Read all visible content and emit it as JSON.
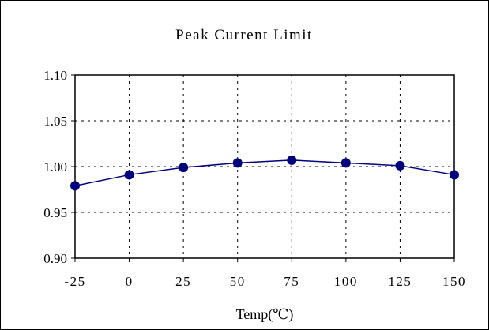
{
  "chart_data": {
    "type": "line",
    "title": "Peak Current Limit",
    "xlabel": "Temp(℃)",
    "ylabel": "",
    "x": [
      -25,
      0,
      25,
      50,
      75,
      100,
      125,
      150
    ],
    "x_tick_labels": [
      "-25",
      "0",
      "25",
      "50",
      "75",
      "100",
      "125",
      "150"
    ],
    "xlim": [
      -25,
      150
    ],
    "y_tick_labels": [
      "1.10",
      "1.05",
      "1.00",
      "0.95",
      "0.90"
    ],
    "y_ticks": [
      1.1,
      1.05,
      1.0,
      0.95,
      0.9
    ],
    "ylim": [
      0.9,
      1.1
    ],
    "grid": true,
    "legend": "none",
    "series": [
      {
        "values": [
          0.979,
          0.991,
          0.999,
          1.004,
          1.007,
          1.004,
          1.001,
          0.991
        ],
        "color": "#00007f"
      }
    ]
  }
}
